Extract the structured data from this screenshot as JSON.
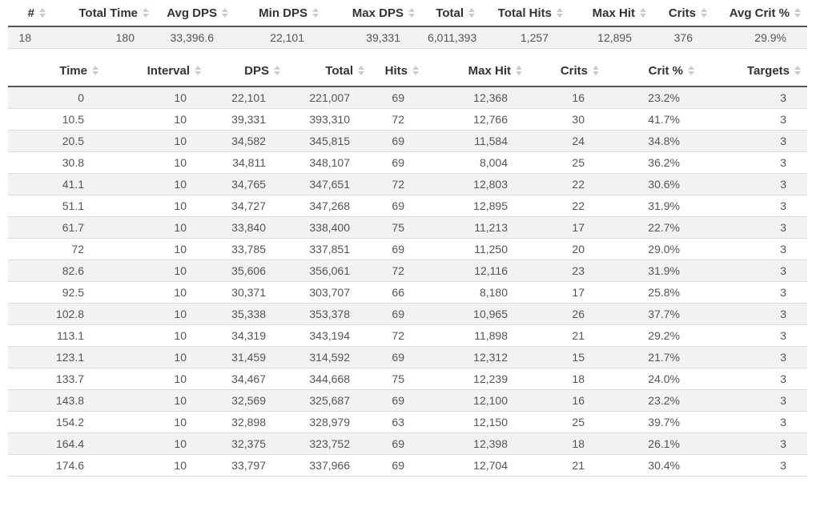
{
  "colors": {
    "header_text": "#333333",
    "cell_text": "#555555",
    "header_border": "#555555",
    "row_border": "#dddddd",
    "stripe_row_bg": "#f2f2f2",
    "sort_icon": "#cccccc"
  },
  "icons": {
    "sort": "up-down-carets"
  },
  "summary_table": {
    "columns": [
      "#",
      "Total Time",
      "Avg DPS",
      "Min DPS",
      "Max DPS",
      "Total",
      "Total Hits",
      "Max Hit",
      "Crits",
      "Avg Crit %"
    ],
    "rows": [
      [
        "18",
        "180",
        "33,396.6",
        "22,101",
        "39,331",
        "6,011,393",
        "1,257",
        "12,895",
        "376",
        "29.9%"
      ]
    ]
  },
  "interval_table": {
    "columns": [
      "Time",
      "Interval",
      "DPS",
      "Total",
      "Hits",
      "Max Hit",
      "Crits",
      "Crit %",
      "Targets"
    ],
    "rows": [
      [
        "0",
        "10",
        "22,101",
        "221,007",
        "69",
        "12,368",
        "16",
        "23.2%",
        "3"
      ],
      [
        "10.5",
        "10",
        "39,331",
        "393,310",
        "72",
        "12,766",
        "30",
        "41.7%",
        "3"
      ],
      [
        "20.5",
        "10",
        "34,582",
        "345,815",
        "69",
        "11,584",
        "24",
        "34.8%",
        "3"
      ],
      [
        "30.8",
        "10",
        "34,811",
        "348,107",
        "69",
        "8,004",
        "25",
        "36.2%",
        "3"
      ],
      [
        "41.1",
        "10",
        "34,765",
        "347,651",
        "72",
        "12,803",
        "22",
        "30.6%",
        "3"
      ],
      [
        "51.1",
        "10",
        "34,727",
        "347,268",
        "69",
        "12,895",
        "22",
        "31.9%",
        "3"
      ],
      [
        "61.7",
        "10",
        "33,840",
        "338,400",
        "75",
        "11,213",
        "17",
        "22.7%",
        "3"
      ],
      [
        "72",
        "10",
        "33,785",
        "337,851",
        "69",
        "11,250",
        "20",
        "29.0%",
        "3"
      ],
      [
        "82.6",
        "10",
        "35,606",
        "356,061",
        "72",
        "12,116",
        "23",
        "31.9%",
        "3"
      ],
      [
        "92.5",
        "10",
        "30,371",
        "303,707",
        "66",
        "8,180",
        "17",
        "25.8%",
        "3"
      ],
      [
        "102.8",
        "10",
        "35,338",
        "353,378",
        "69",
        "10,965",
        "26",
        "37.7%",
        "3"
      ],
      [
        "113.1",
        "10",
        "34,319",
        "343,194",
        "72",
        "11,898",
        "21",
        "29.2%",
        "3"
      ],
      [
        "123.1",
        "10",
        "31,459",
        "314,592",
        "69",
        "12,312",
        "15",
        "21.7%",
        "3"
      ],
      [
        "133.7",
        "10",
        "34,467",
        "344,668",
        "75",
        "12,239",
        "18",
        "24.0%",
        "3"
      ],
      [
        "143.8",
        "10",
        "32,569",
        "325,687",
        "69",
        "12,100",
        "16",
        "23.2%",
        "3"
      ],
      [
        "154.2",
        "10",
        "32,898",
        "328,979",
        "63",
        "12,150",
        "25",
        "39.7%",
        "3"
      ],
      [
        "164.4",
        "10",
        "32,375",
        "323,752",
        "69",
        "12,398",
        "18",
        "26.1%",
        "3"
      ],
      [
        "174.6",
        "10",
        "33,797",
        "337,966",
        "69",
        "12,704",
        "21",
        "30.4%",
        "3"
      ]
    ]
  }
}
